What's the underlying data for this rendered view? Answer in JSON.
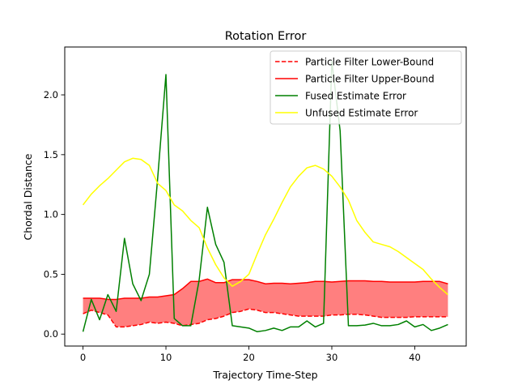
{
  "chart_data": {
    "type": "line",
    "title": "Rotation Error",
    "xlabel": "Trajectory Time-Step",
    "ylabel": "Chordal  Distance",
    "xlim": [
      -2.2,
      46.2
    ],
    "ylim": [
      -0.1,
      2.4
    ],
    "xticks": [
      0,
      10,
      20,
      30,
      40
    ],
    "yticks": [
      0.0,
      0.5,
      1.0,
      1.5,
      2.0
    ],
    "xtick_labels": [
      "0",
      "10",
      "20",
      "30",
      "40"
    ],
    "ytick_labels": [
      "0.0",
      "0.5",
      "1.0",
      "1.5",
      "2.0"
    ],
    "grid": false,
    "legend_position": "top-right",
    "x": [
      0,
      1,
      2,
      3,
      4,
      5,
      6,
      7,
      8,
      9,
      10,
      11,
      12,
      13,
      14,
      15,
      16,
      17,
      18,
      19,
      20,
      21,
      22,
      23,
      24,
      25,
      26,
      27,
      28,
      29,
      30,
      31,
      32,
      33,
      34,
      35,
      36,
      37,
      38,
      39,
      40,
      41,
      42,
      43,
      44
    ],
    "fill_between": {
      "lower_series": "Particle Filter Lower-Bound",
      "upper_series": "Particle Filter Upper-Bound",
      "color": "#ff0000",
      "opacity": 0.5
    },
    "series": [
      {
        "name": "Particle Filter Lower-Bound",
        "color": "#ff0000",
        "style": "dashed",
        "values": [
          0.17,
          0.2,
          0.18,
          0.16,
          0.06,
          0.06,
          0.07,
          0.08,
          0.1,
          0.09,
          0.1,
          0.09,
          0.07,
          0.08,
          0.09,
          0.12,
          0.13,
          0.15,
          0.18,
          0.19,
          0.21,
          0.2,
          0.18,
          0.18,
          0.17,
          0.16,
          0.15,
          0.15,
          0.15,
          0.15,
          0.16,
          0.16,
          0.165,
          0.165,
          0.16,
          0.15,
          0.14,
          0.14,
          0.14,
          0.14,
          0.145,
          0.145,
          0.145,
          0.145,
          0.145
        ]
      },
      {
        "name": "Particle Filter Upper-Bound",
        "color": "#ff0000",
        "style": "solid",
        "values": [
          0.3,
          0.3,
          0.3,
          0.29,
          0.29,
          0.3,
          0.3,
          0.3,
          0.31,
          0.31,
          0.32,
          0.33,
          0.38,
          0.44,
          0.44,
          0.46,
          0.43,
          0.43,
          0.455,
          0.455,
          0.455,
          0.44,
          0.42,
          0.425,
          0.425,
          0.42,
          0.425,
          0.43,
          0.44,
          0.44,
          0.435,
          0.44,
          0.445,
          0.445,
          0.445,
          0.44,
          0.44,
          0.435,
          0.435,
          0.435,
          0.435,
          0.44,
          0.44,
          0.44,
          0.42
        ]
      },
      {
        "name": "Fused Estimate Error",
        "color": "#008000",
        "style": "solid",
        "values": [
          0.02,
          0.29,
          0.12,
          0.33,
          0.19,
          0.8,
          0.42,
          0.28,
          0.5,
          1.3,
          2.17,
          0.13,
          0.07,
          0.07,
          0.45,
          1.06,
          0.75,
          0.6,
          0.07,
          0.06,
          0.05,
          0.02,
          0.03,
          0.05,
          0.03,
          0.06,
          0.06,
          0.11,
          0.06,
          0.09,
          2.28,
          1.7,
          0.07,
          0.07,
          0.075,
          0.09,
          0.07,
          0.07,
          0.08,
          0.11,
          0.06,
          0.08,
          0.03,
          0.05,
          0.08
        ]
      },
      {
        "name": "Unfused Estimate Error",
        "color": "#ffff00",
        "style": "solid",
        "values": [
          1.08,
          1.17,
          1.24,
          1.3,
          1.37,
          1.44,
          1.47,
          1.46,
          1.41,
          1.26,
          1.2,
          1.08,
          1.03,
          0.95,
          0.89,
          0.72,
          0.58,
          0.47,
          0.4,
          0.44,
          0.5,
          0.67,
          0.83,
          0.96,
          1.1,
          1.23,
          1.32,
          1.39,
          1.41,
          1.38,
          1.32,
          1.23,
          1.12,
          0.95,
          0.85,
          0.77,
          0.75,
          0.73,
          0.69,
          0.64,
          0.59,
          0.54,
          0.46,
          0.39,
          0.33
        ]
      }
    ]
  }
}
